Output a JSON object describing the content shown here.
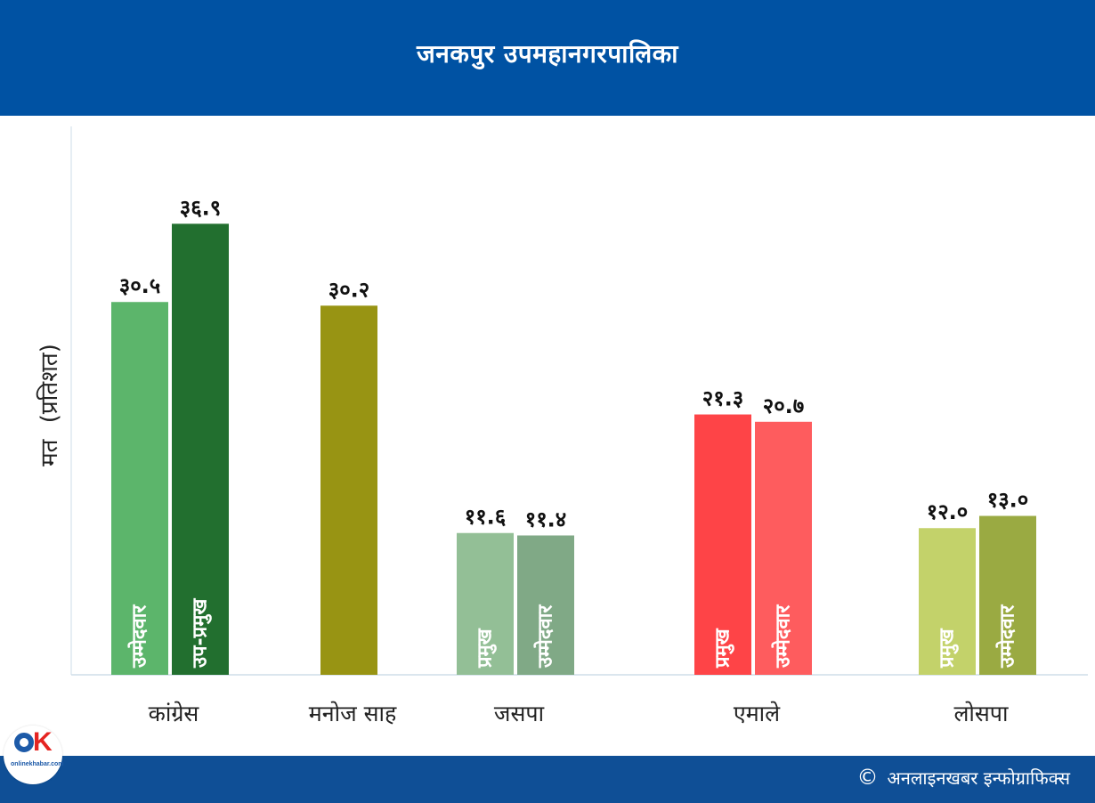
{
  "header": {
    "title": "जनकपुर उपमहानगरपालिका"
  },
  "footer": {
    "copyright_symbol": "©",
    "credit": "अनलाइनखबर इन्फोग्राफिक्स"
  },
  "logo": {
    "mark": "OK",
    "brand": "onlinekhabar.com"
  },
  "chart_data": {
    "type": "bar",
    "ylabel": "मत (प्रतिशत)",
    "xlabel": "",
    "ylim": [
      0,
      42
    ],
    "grid": false,
    "groups": [
      {
        "category": "कांग्रेस",
        "bars": [
          {
            "label": "उम्मेदवार",
            "value": 30.5,
            "value_label": "३०.५",
            "color": "#5cb56b"
          },
          {
            "label": "उप-प्रमुख",
            "value": 36.9,
            "value_label": "३६.९",
            "color": "#226f2f"
          }
        ]
      },
      {
        "category": "मनोज साह",
        "bars": [
          {
            "label": "",
            "value": 30.2,
            "value_label": "३०.२",
            "color": "#989413"
          }
        ]
      },
      {
        "category": "जसपा",
        "bars": [
          {
            "label": "प्रमुख",
            "value": 11.6,
            "value_label": "११.६",
            "color": "#93bf96"
          },
          {
            "label": "उम्मेदवार",
            "value": 11.4,
            "value_label": "११.४",
            "color": "#80a986"
          }
        ]
      },
      {
        "category": "एमाले",
        "bars": [
          {
            "label": "प्रमुख",
            "value": 21.3,
            "value_label": "२१.३",
            "color": "#fe4447"
          },
          {
            "label": "उम्मेदवार",
            "value": 20.7,
            "value_label": "२०.७",
            "color": "#fe5c5e"
          }
        ]
      },
      {
        "category": "लोसपा",
        "bars": [
          {
            "label": "प्रमुख",
            "value": 12.0,
            "value_label": "१२.०",
            "color": "#c3d26a"
          },
          {
            "label": "उम्मेदवार",
            "value": 13.0,
            "value_label": "१३.०",
            "color": "#9aaa42"
          }
        ]
      }
    ]
  }
}
